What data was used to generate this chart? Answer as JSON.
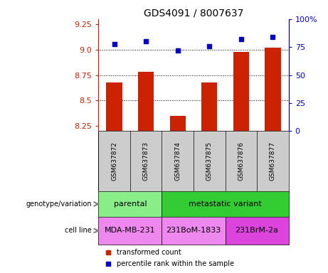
{
  "title": "GDS4091 / 8007637",
  "samples": [
    "GSM637872",
    "GSM637873",
    "GSM637874",
    "GSM637875",
    "GSM637876",
    "GSM637877"
  ],
  "transformed_counts": [
    8.68,
    8.78,
    8.35,
    8.68,
    8.98,
    9.02
  ],
  "percentile_ranks": [
    78,
    80,
    72,
    76,
    82,
    84
  ],
  "ylim_left": [
    8.2,
    9.3
  ],
  "ylim_right": [
    0,
    100
  ],
  "yticks_left": [
    8.25,
    8.5,
    8.75,
    9.0,
    9.25
  ],
  "yticks_right": [
    0,
    25,
    50,
    75,
    100
  ],
  "bar_color": "#cc2200",
  "dot_color": "#0000cc",
  "parental_color": "#88ee88",
  "metastatic_color": "#33cc33",
  "cell_color_1": "#ee88ee",
  "cell_color_2": "#dd44dd",
  "background_labels": "#cccccc",
  "left_axis_color": "#cc2200",
  "right_axis_color": "#0000cc",
  "legend_items": [
    "transformed count",
    "percentile rank within the sample"
  ],
  "parental_label": "parental",
  "metastatic_label": "metastatic variant",
  "cell_labels": [
    "MDA-MB-231",
    "231BoM-1833",
    "231BrM-2a"
  ],
  "row_label_geno": "genotype/variation",
  "row_label_cell": "cell line"
}
